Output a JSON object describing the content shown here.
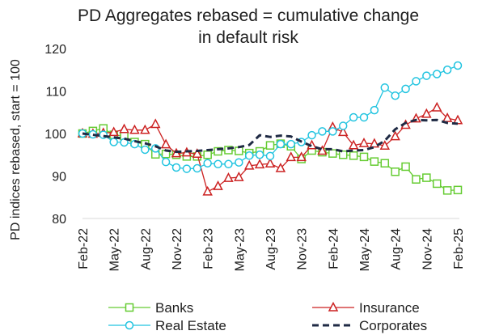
{
  "chart_data": {
    "type": "line",
    "title_lines": [
      "PD Aggregates rebased = cumulative change",
      "in default risk"
    ],
    "ylabel": "PD indices rebased, start = 100",
    "xlabel": "",
    "ylim": [
      80,
      120
    ],
    "yticks": [
      80,
      90,
      100,
      110,
      120
    ],
    "grid": false,
    "legend_position": "bottom",
    "x": [
      "Feb-22",
      "Mar-22",
      "Apr-22",
      "May-22",
      "Jun-22",
      "Jul-22",
      "Aug-22",
      "Sep-22",
      "Oct-22",
      "Nov-22",
      "Dec-22",
      "Jan-23",
      "Feb-23",
      "Mar-23",
      "Apr-23",
      "May-23",
      "Jun-23",
      "Jul-23",
      "Aug-23",
      "Sep-23",
      "Oct-23",
      "Nov-23",
      "Dec-23",
      "Jan-24",
      "Feb-24",
      "Mar-24",
      "Apr-24",
      "May-24",
      "Jun-24",
      "Jul-24",
      "Aug-24",
      "Sep-24",
      "Oct-24",
      "Nov-24",
      "Dec-24",
      "Jan-25",
      "Feb-25"
    ],
    "x_tick_labels": [
      "Feb-22",
      "May-22",
      "Aug-22",
      "Nov-22",
      "Feb-23",
      "May-23",
      "Aug-23",
      "Nov-23",
      "Feb-24",
      "May-24",
      "Aug-24",
      "Nov-24",
      "Feb-25"
    ],
    "series": [
      {
        "name": "Banks",
        "color": "#66cc33",
        "marker": "square",
        "dashed": false,
        "values": [
          100,
          100.6,
          101.2,
          99.7,
          99.4,
          98,
          97.5,
          95.1,
          95.2,
          95.0,
          94.6,
          94.6,
          95.0,
          95.8,
          96.1,
          95.9,
          95.4,
          95.8,
          97.2,
          97.6,
          97.0,
          94.0,
          96.0,
          95.6,
          95.3,
          95.0,
          94.8,
          94.5,
          93.4,
          93.0,
          91.0,
          92.2,
          89.2,
          89.6,
          88.2,
          86.6,
          86.7
        ]
      },
      {
        "name": "Insurance",
        "color": "#cc2222",
        "marker": "triangle",
        "dashed": false,
        "values": [
          100,
          99.9,
          100.1,
          100.3,
          101,
          100.8,
          100.8,
          102.2,
          97.4,
          95.3,
          95.5,
          95.2,
          86.3,
          87.6,
          89.5,
          89.7,
          92.4,
          92.7,
          92.9,
          91.8,
          94.4,
          94.4,
          97.2,
          95.9,
          101.5,
          100.3,
          97.2,
          97.7,
          97.6,
          97.1,
          99.3,
          102.0,
          103.5,
          104.6,
          106.1,
          103.6,
          103.1
        ]
      },
      {
        "name": "Real Estate",
        "color": "#22c4e0",
        "marker": "circle",
        "dashed": false,
        "values": [
          100,
          99.8,
          99.7,
          98.0,
          97.9,
          97.5,
          96.2,
          96.5,
          93.3,
          92.0,
          91.7,
          91.8,
          93.0,
          92.8,
          92.8,
          93.2,
          94.8,
          95.0,
          94.7,
          97.5,
          97.5,
          98.0,
          99.6,
          100.5,
          100.5,
          101.8,
          103.8,
          103.8,
          105.5,
          110.8,
          108.9,
          110.5,
          112.3,
          113.6,
          114.0,
          115.0,
          116.0
        ]
      },
      {
        "name": "Corporates",
        "color": "#1f2a44",
        "marker": "none",
        "dashed": true,
        "values": [
          100,
          99.7,
          99.4,
          99.1,
          98.8,
          98.2,
          97.7,
          97.0,
          96.0,
          95.7,
          95.8,
          95.9,
          96.1,
          96.3,
          96.5,
          96.8,
          97.3,
          99.6,
          99.2,
          99.5,
          99.3,
          98.1,
          97.0,
          96.3,
          96.3,
          95.8,
          96.0,
          96.1,
          96.8,
          98.3,
          101.0,
          102.5,
          103.2,
          103.1,
          103.2,
          102.5,
          102.3
        ]
      }
    ]
  }
}
